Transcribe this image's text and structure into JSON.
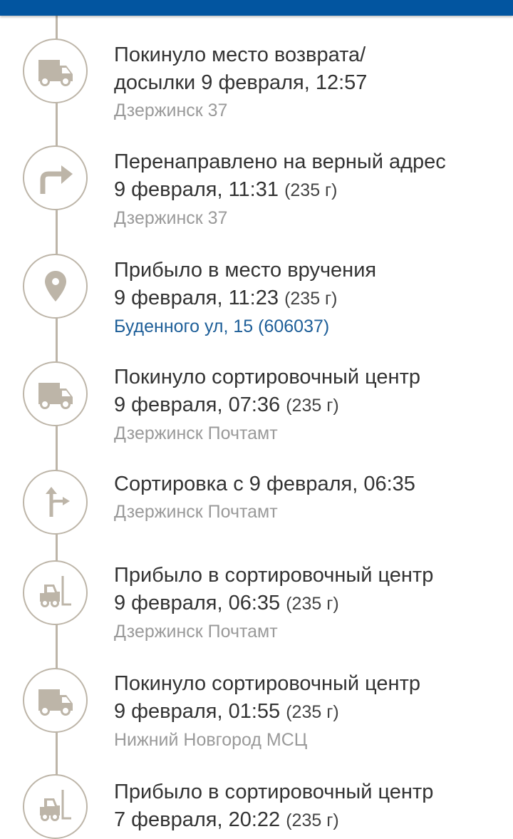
{
  "colors": {
    "header": "#0255a0",
    "timeline": "#bdb5a8",
    "icon": "#bdb5a8",
    "link": "#1d5e98"
  },
  "events": [
    {
      "icon": "truck-icon",
      "title_lines": [
        "Покинуло место возврата/",
        "досылки 9 февраля, 12:57"
      ],
      "weight": "",
      "location": "Дзержинск 37",
      "location_link": false
    },
    {
      "icon": "turn-right-icon",
      "title_lines": [
        "Перенаправлено на верный адрес",
        "9 февраля, 11:31"
      ],
      "weight": "(235 г)",
      "location": "Дзержинск 37",
      "location_link": false
    },
    {
      "icon": "location-pin-icon",
      "title_lines": [
        "Прибыло в место вручения",
        "9 февраля, 11:23"
      ],
      "weight": "(235 г)",
      "location": "Буденного ул, 15 (606037)",
      "location_link": true
    },
    {
      "icon": "truck-icon",
      "title_lines": [
        "Покинуло сортировочный центр",
        "9 февраля, 07:36"
      ],
      "weight": "(235 г)",
      "location": "Дзержинск Почтамт",
      "location_link": false
    },
    {
      "icon": "sorting-icon",
      "title_lines": [
        "Сортировка с 9 февраля, 06:35"
      ],
      "weight": "",
      "location": "Дзержинск Почтамт",
      "location_link": false
    },
    {
      "icon": "forklift-icon",
      "title_lines": [
        "Прибыло в сортировочный центр",
        "9 февраля, 06:35"
      ],
      "weight": "(235 г)",
      "location": "Дзержинск Почтамт",
      "location_link": false
    },
    {
      "icon": "truck-icon",
      "title_lines": [
        "Покинуло сортировочный центр",
        "9 февраля, 01:55"
      ],
      "weight": "(235 г)",
      "location": "Нижний Новгород МСЦ",
      "location_link": false
    },
    {
      "icon": "forklift-icon",
      "title_lines": [
        "Прибыло в сортировочный центр",
        "7 февраля, 20:22"
      ],
      "weight": "(235 г)",
      "location": "",
      "location_link": false
    }
  ]
}
